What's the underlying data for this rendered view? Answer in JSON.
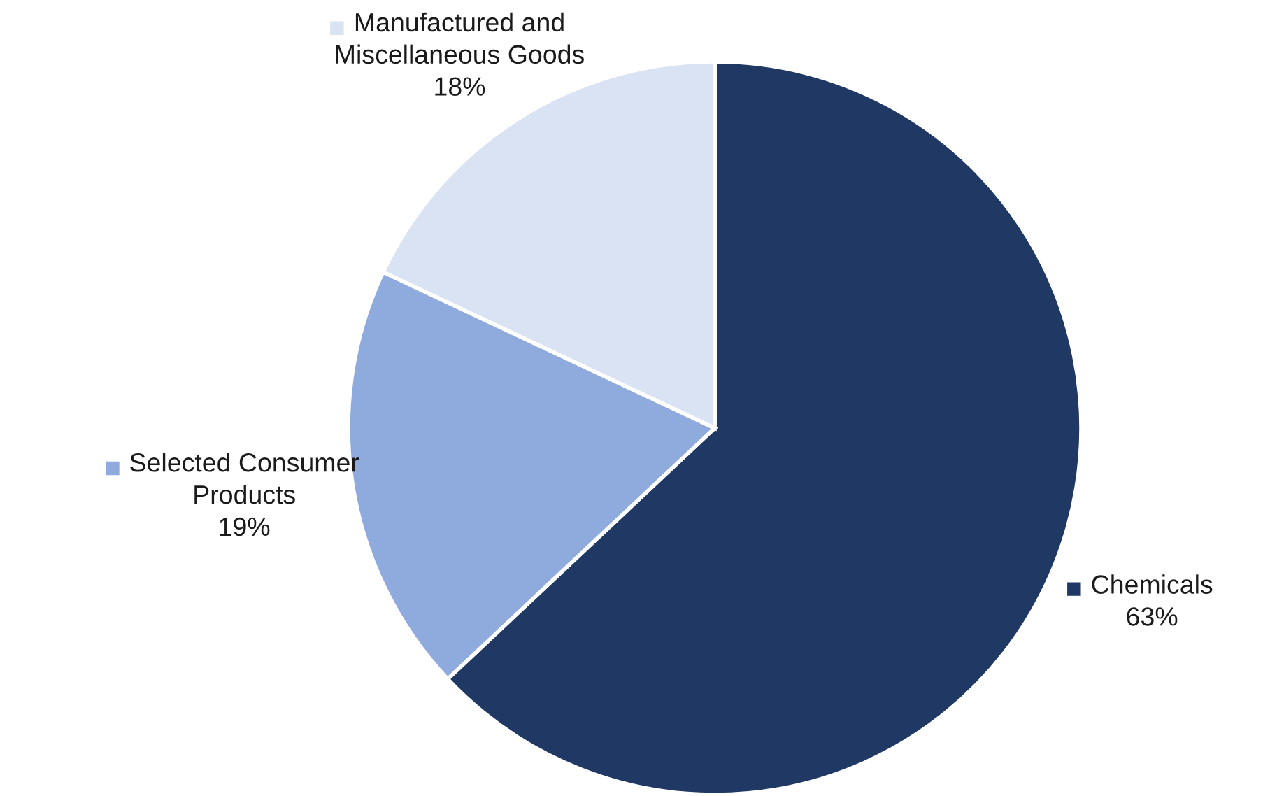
{
  "chart_data": {
    "type": "pie",
    "categories": [
      "Chemicals",
      "Selected Consumer Products",
      "Manufactured and Miscellaneous Goods"
    ],
    "values": [
      63,
      19,
      18
    ],
    "colors": [
      "#203864",
      "#8faadc",
      "#dae3f3"
    ],
    "value_labels": [
      "63%",
      "19%",
      "18%"
    ],
    "legend": "top left"
  }
}
